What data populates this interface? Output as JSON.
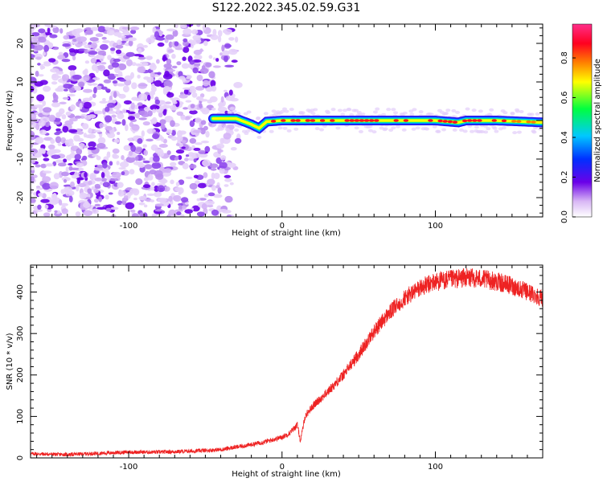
{
  "title": "S122.2022.345.02.59.G31",
  "chart_data": [
    {
      "type": "heatmap",
      "xlabel": "Height of straight line (km)",
      "ylabel": "Frequency (Hz)",
      "xlim": [
        -164,
        170
      ],
      "ylim": [
        -25,
        25
      ],
      "xticks": [
        -100,
        0,
        100
      ],
      "yticks": [
        -20,
        -10,
        0,
        10,
        20
      ],
      "colorbar": {
        "label": "Normalized spectral amplitude",
        "range": [
          0,
          0.97
        ],
        "ticks": [
          0.0,
          0.2,
          0.4,
          0.6,
          0.8
        ],
        "colormap": [
          "#ffffff",
          "#d9b8f5",
          "#6a00e8",
          "#0030ff",
          "#00c8ff",
          "#00ff40",
          "#ffff00",
          "#ff8000",
          "#ff0020",
          "#ff2e8a"
        ]
      },
      "description_points": {
        "noise_region_x": [
          -164,
          -35
        ],
        "signal_track": {
          "x": [
            -45,
            -30,
            -20,
            -15,
            -10,
            0,
            10,
            40,
            80,
            100,
            115,
            120,
            140,
            170
          ],
          "y": [
            0.5,
            0.5,
            -1,
            -2,
            -0.3,
            0,
            0,
            0,
            0,
            0,
            -0.5,
            0,
            0,
            -0.5
          ],
          "peak_amplitude": [
            0.55,
            0.6,
            0.6,
            0.7,
            0.8,
            0.85,
            0.9,
            0.9,
            0.9,
            0.85,
            0.8,
            0.85,
            0.85,
            0.7
          ]
        }
      }
    },
    {
      "type": "line",
      "xlabel": "Height of straight line (km)",
      "ylabel": "SNR (10 * v/v)",
      "xlim": [
        -164,
        170
      ],
      "ylim": [
        0,
        465
      ],
      "xticks": [
        -100,
        0,
        100
      ],
      "yticks": [
        0,
        100,
        200,
        300,
        400
      ],
      "color": "#ee2222",
      "series": [
        {
          "x": [
            -164,
            -140,
            -120,
            -100,
            -80,
            -60,
            -40,
            -30,
            -20,
            -10,
            0,
            5,
            10,
            12,
            15,
            20,
            30,
            40,
            50,
            60,
            70,
            80,
            90,
            100,
            110,
            120,
            130,
            140,
            150,
            160,
            170
          ],
          "values": [
            10,
            8,
            11,
            14,
            14,
            16,
            20,
            26,
            32,
            40,
            50,
            60,
            80,
            40,
            100,
            125,
            160,
            200,
            250,
            305,
            350,
            385,
            410,
            425,
            430,
            435,
            432,
            425,
            415,
            400,
            385
          ]
        }
      ]
    }
  ]
}
